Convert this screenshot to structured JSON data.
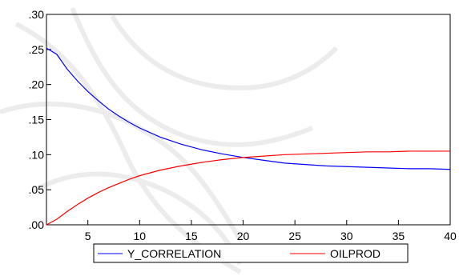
{
  "chart_data": {
    "type": "line",
    "title": "",
    "xlabel": "",
    "ylabel": "",
    "xlim": [
      1,
      40
    ],
    "ylim": [
      0.0,
      0.3
    ],
    "x_ticks": [
      5,
      10,
      15,
      20,
      25,
      30,
      35,
      40
    ],
    "x_tick_labels": [
      "5",
      "10",
      "15",
      "20",
      "25",
      "30",
      "35",
      "40"
    ],
    "y_ticks": [
      0.0,
      0.05,
      0.1,
      0.15,
      0.2,
      0.25,
      0.3
    ],
    "y_tick_labels": [
      ".00",
      ".05",
      ".10",
      ".15",
      ".20",
      ".25",
      ".30"
    ],
    "grid": false,
    "legend_position": "bottom-center",
    "series": [
      {
        "name": "Y_CORRELATION",
        "color": "#0000ff",
        "x": [
          1,
          2,
          3,
          4,
          5,
          6,
          7,
          8,
          9,
          10,
          12,
          14,
          16,
          18,
          20,
          22,
          24,
          26,
          28,
          30,
          32,
          34,
          36,
          38,
          40
        ],
        "values": [
          0.252,
          0.243,
          0.222,
          0.205,
          0.19,
          0.177,
          0.165,
          0.155,
          0.146,
          0.138,
          0.125,
          0.115,
          0.107,
          0.101,
          0.096,
          0.092,
          0.088,
          0.086,
          0.084,
          0.083,
          0.082,
          0.081,
          0.08,
          0.08,
          0.079
        ]
      },
      {
        "name": "OILPROD",
        "color": "#ff0000",
        "x": [
          1,
          2,
          3,
          4,
          5,
          6,
          7,
          8,
          9,
          10,
          12,
          14,
          16,
          18,
          20,
          22,
          24,
          26,
          28,
          30,
          32,
          34,
          36,
          38,
          40
        ],
        "values": [
          0.0,
          0.008,
          0.019,
          0.029,
          0.038,
          0.046,
          0.053,
          0.059,
          0.065,
          0.07,
          0.078,
          0.084,
          0.089,
          0.093,
          0.096,
          0.098,
          0.1,
          0.101,
          0.102,
          0.103,
          0.104,
          0.104,
          0.105,
          0.105,
          0.105
        ]
      }
    ]
  }
}
